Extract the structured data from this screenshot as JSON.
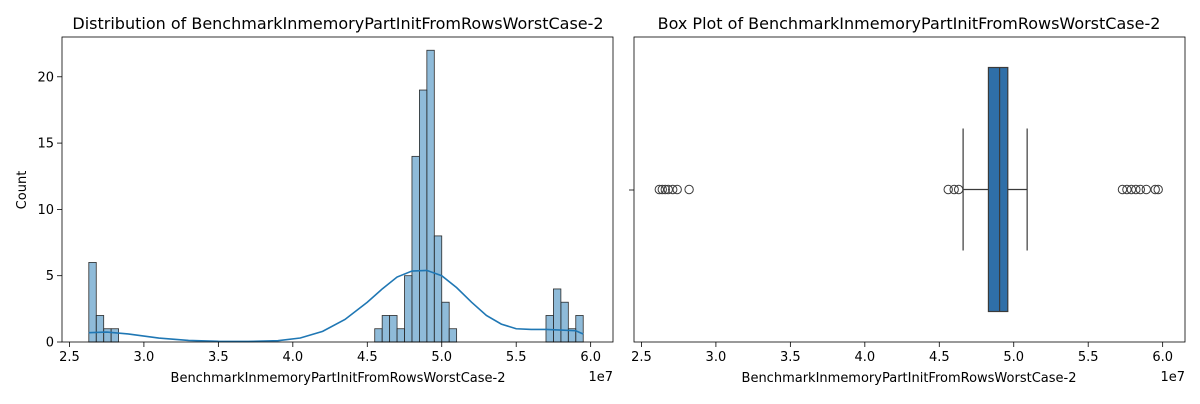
{
  "colors": {
    "bar_fill": "#1f77b4",
    "bar_fill_opacity": 0.5,
    "bar_edge": "#2b2b2b",
    "kde_line": "#1f77b4",
    "box_fill": "#2f6fa8",
    "box_edge": "#3a3a3a",
    "axis": "#000000"
  },
  "chart_data": [
    {
      "type": "bar",
      "subtype": "histogram-with-kde",
      "title": "Distribution of BenchmarkInmemoryPartInitFromRowsWorstCase-2",
      "xlabel": "BenchmarkInmemoryPartInitFromRowsWorstCase-2",
      "ylabel": "Count",
      "x_offset_label": "1e7",
      "xlim": [
        2.45,
        6.15
      ],
      "ylim": [
        0,
        23
      ],
      "xticks": [
        2.5,
        3.0,
        3.5,
        4.0,
        4.5,
        5.0,
        5.5,
        6.0
      ],
      "xtick_labels": [
        "2.5",
        "3.0",
        "3.5",
        "4.0",
        "4.5",
        "5.0",
        "5.5",
        "6.0"
      ],
      "yticks": [
        0,
        5,
        10,
        15,
        20
      ],
      "ytick_labels": [
        "0",
        "5",
        "10",
        "15",
        "20"
      ],
      "bin_width": 0.05,
      "bins": [
        {
          "x0": 2.63,
          "count": 6
        },
        {
          "x0": 2.68,
          "count": 2
        },
        {
          "x0": 2.73,
          "count": 1
        },
        {
          "x0": 2.78,
          "count": 1
        },
        {
          "x0": 4.55,
          "count": 1
        },
        {
          "x0": 4.6,
          "count": 2
        },
        {
          "x0": 4.65,
          "count": 2
        },
        {
          "x0": 4.7,
          "count": 1
        },
        {
          "x0": 4.75,
          "count": 5
        },
        {
          "x0": 4.8,
          "count": 14
        },
        {
          "x0": 4.85,
          "count": 19
        },
        {
          "x0": 4.9,
          "count": 22
        },
        {
          "x0": 4.95,
          "count": 8
        },
        {
          "x0": 5.0,
          "count": 3
        },
        {
          "x0": 5.05,
          "count": 1
        },
        {
          "x0": 5.7,
          "count": 2
        },
        {
          "x0": 5.75,
          "count": 4
        },
        {
          "x0": 5.8,
          "count": 3
        },
        {
          "x0": 5.85,
          "count": 1
        },
        {
          "x0": 5.9,
          "count": 2
        }
      ],
      "kde": {
        "x": [
          2.63,
          2.75,
          2.9,
          3.1,
          3.3,
          3.5,
          3.7,
          3.9,
          4.05,
          4.2,
          4.35,
          4.5,
          4.6,
          4.7,
          4.8,
          4.9,
          5.0,
          5.1,
          5.2,
          5.3,
          5.4,
          5.5,
          5.6,
          5.7,
          5.8,
          5.9,
          5.95
        ],
        "y": [
          0.7,
          0.75,
          0.6,
          0.3,
          0.12,
          0.05,
          0.04,
          0.1,
          0.3,
          0.8,
          1.7,
          3.0,
          4.0,
          4.9,
          5.35,
          5.4,
          5.0,
          4.1,
          3.0,
          2.0,
          1.35,
          1.0,
          0.95,
          0.95,
          0.9,
          0.85,
          0.6
        ]
      }
    },
    {
      "type": "box",
      "title": "Box Plot of BenchmarkInmemoryPartInitFromRowsWorstCase-2",
      "xlabel": "BenchmarkInmemoryPartInitFromRowsWorstCase-2",
      "x_offset_label": "1e7",
      "xlim": [
        2.45,
        6.15
      ],
      "xticks": [
        2.5,
        3.0,
        3.5,
        4.0,
        4.5,
        5.0,
        5.5,
        6.0
      ],
      "xtick_labels": [
        "2.5",
        "3.0",
        "3.5",
        "4.0",
        "4.5",
        "5.0",
        "5.5",
        "6.0"
      ],
      "stats": {
        "whisker_low": 4.66,
        "q1": 4.83,
        "median": 4.905,
        "q3": 4.96,
        "whisker_high": 5.09
      },
      "outliers": [
        2.62,
        2.64,
        2.66,
        2.68,
        2.71,
        2.74,
        2.82,
        4.56,
        4.6,
        4.63,
        5.73,
        5.76,
        5.79,
        5.82,
        5.85,
        5.89,
        5.95,
        5.97
      ]
    }
  ]
}
